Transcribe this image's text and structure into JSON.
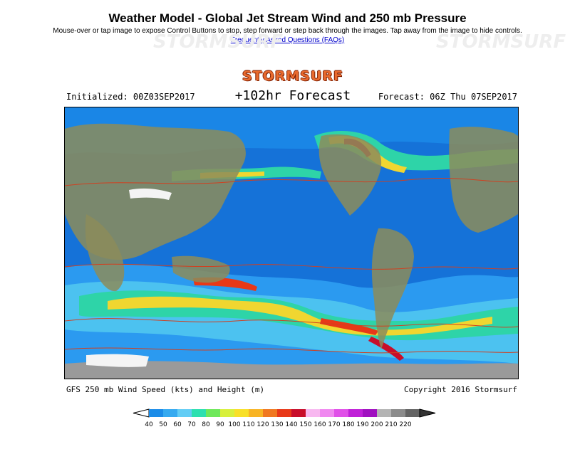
{
  "header": {
    "title": "Weather Model - Global Jet Stream Wind and 250 mb Pressure",
    "instructions": "Mouse-over or tap image to expose Control Buttons to stop, step forward or step back through the images. Tap away from the image to hide controls.",
    "faq_link": "Frequently Asked Questions (FAQs)"
  },
  "chart": {
    "logo": "STORMSURF",
    "initialized": "Initialized: 00Z03SEP2017",
    "forecast_hour": "+102hr Forecast",
    "forecast_valid": "Forecast: 06Z Thu 07SEP2017",
    "caption": "GFS 250 mb Wind Speed (kts) and Height (m)",
    "copyright": "Copyright 2016 Stormsurf"
  },
  "legend": {
    "labels": [
      "40",
      "50",
      "60",
      "70",
      "80",
      "90",
      "100",
      "110",
      "120",
      "130",
      "140",
      "150",
      "160",
      "170",
      "180",
      "190",
      "200",
      "210",
      "220"
    ],
    "colors": [
      "#1b8ce8",
      "#36aaf0",
      "#63cdf5",
      "#2de0b0",
      "#6ee85a",
      "#d8f03c",
      "#f8e028",
      "#f8b424",
      "#f07820",
      "#e83818",
      "#c80e2a",
      "#f8b8f0",
      "#f088f0",
      "#e050e8",
      "#c020d8",
      "#a010c0",
      "#b4b4b4",
      "#8c8c8c",
      "#646464"
    ]
  },
  "watermark": "STORMSURF"
}
